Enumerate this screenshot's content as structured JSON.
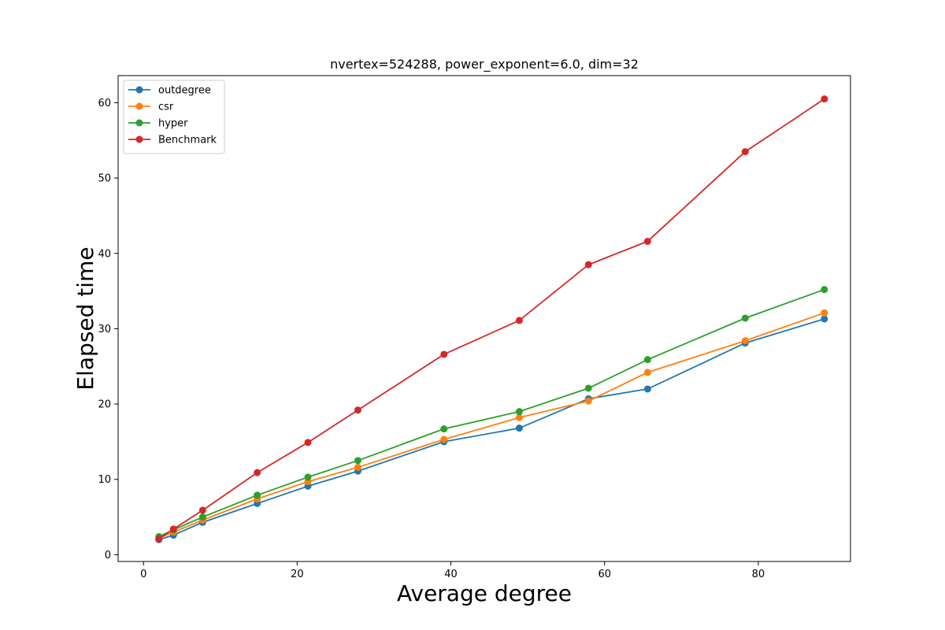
{
  "chart_data": {
    "type": "line",
    "title": "nvertex=524288, power_exponent=6.0, dim=32",
    "xlabel": "Average degree",
    "ylabel": "Elapsed time",
    "xlim": [
      -3.3,
      92.0
    ],
    "ylim": [
      -0.9,
      63.6
    ],
    "xticks": [
      0,
      20,
      40,
      60,
      80
    ],
    "yticks": [
      0,
      10,
      20,
      30,
      40,
      50,
      60
    ],
    "grid": false,
    "legend_position": "top-left",
    "x": [
      2.0,
      3.9,
      7.7,
      14.8,
      21.4,
      27.9,
      39.1,
      48.9,
      57.9,
      65.6,
      78.3,
      88.6
    ],
    "series": [
      {
        "name": "outdegree",
        "color": "#1f77b4",
        "values": [
          2.0,
          2.6,
          4.3,
          6.8,
          9.1,
          11.1,
          15.0,
          16.8,
          20.7,
          22.0,
          28.1,
          31.3
        ]
      },
      {
        "name": "csr",
        "color": "#ff7f0e",
        "values": [
          2.2,
          3.0,
          4.6,
          7.4,
          9.7,
          11.6,
          15.3,
          18.2,
          20.4,
          24.2,
          28.4,
          32.1
        ]
      },
      {
        "name": "hyper",
        "color": "#2ca02c",
        "values": [
          2.4,
          3.3,
          5.0,
          7.9,
          10.3,
          12.5,
          16.7,
          19.0,
          22.1,
          25.9,
          31.4,
          35.2
        ]
      },
      {
        "name": "Benchmark",
        "color": "#d62728",
        "values": [
          2.1,
          3.4,
          5.9,
          10.9,
          14.9,
          19.2,
          26.6,
          31.1,
          38.5,
          41.6,
          53.5,
          60.5
        ]
      }
    ]
  }
}
